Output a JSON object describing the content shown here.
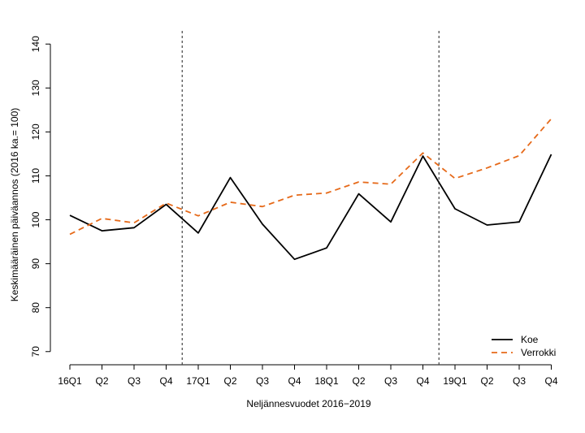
{
  "chart_data": {
    "type": "line",
    "xlabel": "Neljännesvuodet 2016−2019",
    "ylabel": "Keskimääräinen päiväannos (2016 ka.= 100)",
    "ylim": [
      67,
      143
    ],
    "yticks": [
      70,
      80,
      90,
      100,
      110,
      120,
      130,
      140
    ],
    "grid": false,
    "legend_position": "bottom-right",
    "categories": [
      "16Q1",
      "Q2",
      "Q3",
      "Q4",
      "17Q1",
      "Q2",
      "Q3",
      "Q4",
      "18Q1",
      "Q2",
      "Q3",
      "Q4",
      "19Q1",
      "Q2",
      "Q3",
      "Q4"
    ],
    "vertical_lines_after_index": [
      3,
      11
    ],
    "series": [
      {
        "name": "Koe",
        "color": "#000000",
        "style": "solid",
        "values": [
          101.0,
          97.5,
          98.2,
          103.5,
          97.0,
          109.6,
          99.0,
          91.0,
          93.6,
          105.9,
          99.5,
          114.5,
          102.5,
          98.8,
          99.5,
          114.9
        ]
      },
      {
        "name": "Verrokki",
        "color": "#e66a1a",
        "style": "dashed",
        "values": [
          96.7,
          100.3,
          99.3,
          103.8,
          100.9,
          104.0,
          103.0,
          105.6,
          106.1,
          108.6,
          108.1,
          115.2,
          109.4,
          111.8,
          114.6,
          123.0
        ]
      }
    ]
  }
}
